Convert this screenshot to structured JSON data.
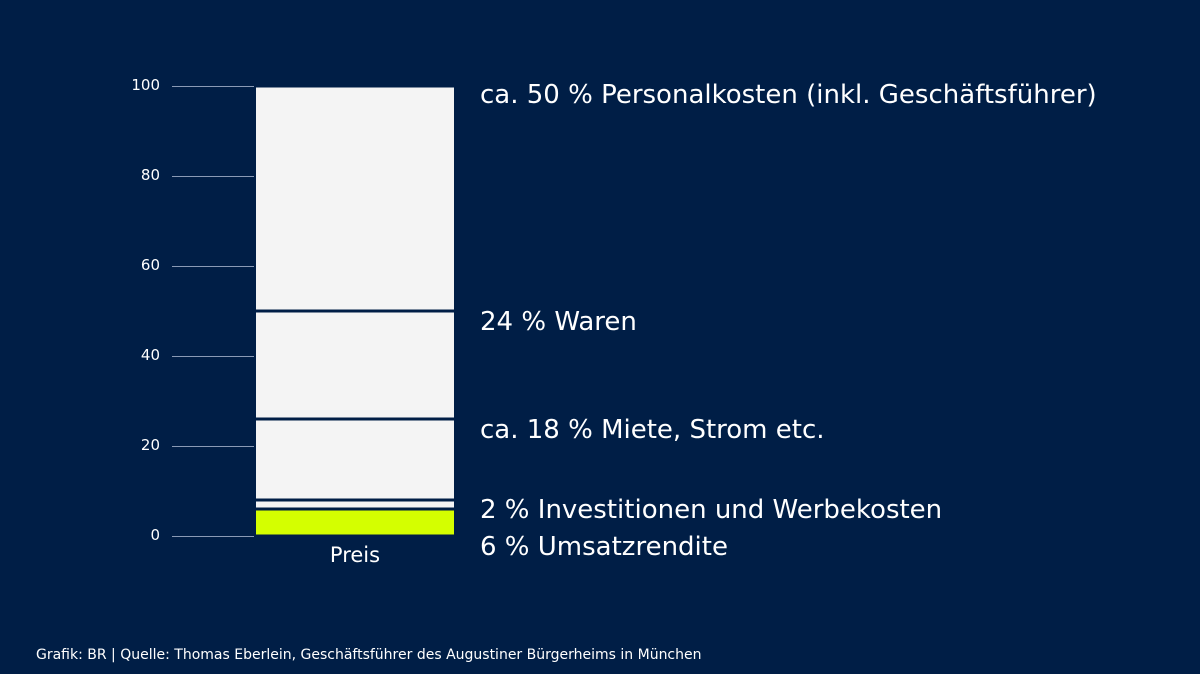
{
  "chart_data": {
    "type": "bar",
    "stacked": true,
    "categories": [
      "Preis"
    ],
    "series": [
      {
        "name": "6 % Umsatzrendite",
        "values": [
          6
        ],
        "color": "#d4ff00"
      },
      {
        "name": "2 % Investitionen und Werbekosten",
        "values": [
          2
        ],
        "color": "#f4f4f4"
      },
      {
        "name": "ca. 18 % Miete, Strom etc.",
        "values": [
          18
        ],
        "color": "#f4f4f4"
      },
      {
        "name": "24 % Waren",
        "values": [
          24
        ],
        "color": "#f4f4f4"
      },
      {
        "name": "ca. 50 % Personalkosten (inkl. Geschäftsführer)",
        "values": [
          50
        ],
        "color": "#f4f4f4"
      }
    ],
    "ylim": [
      0,
      100
    ],
    "yticks": [
      "0",
      "20",
      "40",
      "60",
      "80",
      "100"
    ],
    "title": "",
    "xlabel": "",
    "ylabel": "",
    "background": "#001e46"
  },
  "footer": "Grafik: BR | Quelle: Thomas Eberlein, Geschäftsführer des Augustiner Bürgerheims in München"
}
